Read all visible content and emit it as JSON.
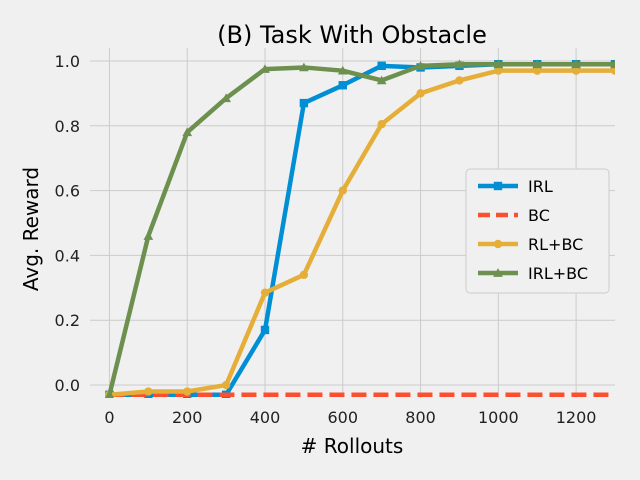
{
  "chart_data": {
    "type": "line",
    "title": "(B) Task With Obstacle",
    "xlabel": "# Rollouts",
    "ylabel": "Avg. Reward",
    "xlim": [
      -50,
      1300
    ],
    "ylim": [
      -0.04,
      1.04
    ],
    "xticks": [
      0,
      200,
      400,
      600,
      800,
      1000,
      1200
    ],
    "yticks": [
      0.0,
      0.2,
      0.4,
      0.6,
      0.8,
      1.0
    ],
    "xtick_labels": [
      "0",
      "200",
      "400",
      "600",
      "800",
      "1000",
      "1200"
    ],
    "ytick_labels": [
      "0.0",
      "0.2",
      "0.4",
      "0.6",
      "0.8",
      "1.0"
    ],
    "grid": true,
    "legend_position": "right",
    "series": [
      {
        "name": "IRL",
        "color": "#008fd5",
        "marker": "square",
        "dash": false,
        "x": [
          0,
          100,
          200,
          300,
          400,
          500,
          600,
          700,
          800,
          900,
          1000,
          1100,
          1200,
          1300
        ],
        "y": [
          -0.03,
          -0.03,
          -0.03,
          -0.03,
          0.17,
          0.87,
          0.925,
          0.985,
          0.98,
          0.985,
          0.99,
          0.99,
          0.99,
          0.99
        ]
      },
      {
        "name": "BC",
        "color": "#fc4f30",
        "marker": "none",
        "dash": true,
        "x": [
          0,
          1300
        ],
        "y": [
          -0.03,
          -0.03
        ]
      },
      {
        "name": "RL+BC",
        "color": "#e5ae38",
        "marker": "circle",
        "dash": false,
        "x": [
          0,
          100,
          200,
          300,
          400,
          500,
          600,
          700,
          800,
          900,
          1000,
          1100,
          1200,
          1300
        ],
        "y": [
          -0.03,
          -0.02,
          -0.02,
          0.0,
          0.285,
          0.34,
          0.6,
          0.805,
          0.9,
          0.94,
          0.97,
          0.97,
          0.97,
          0.97
        ]
      },
      {
        "name": "IRL+BC",
        "color": "#6d904f",
        "marker": "triangle",
        "dash": false,
        "x": [
          0,
          100,
          200,
          300,
          400,
          500,
          600,
          700,
          800,
          900,
          1000,
          1100,
          1200,
          1300
        ],
        "y": [
          -0.03,
          0.46,
          0.78,
          0.885,
          0.975,
          0.98,
          0.97,
          0.94,
          0.985,
          0.99,
          0.99,
          0.99,
          0.99,
          0.99
        ]
      }
    ]
  }
}
